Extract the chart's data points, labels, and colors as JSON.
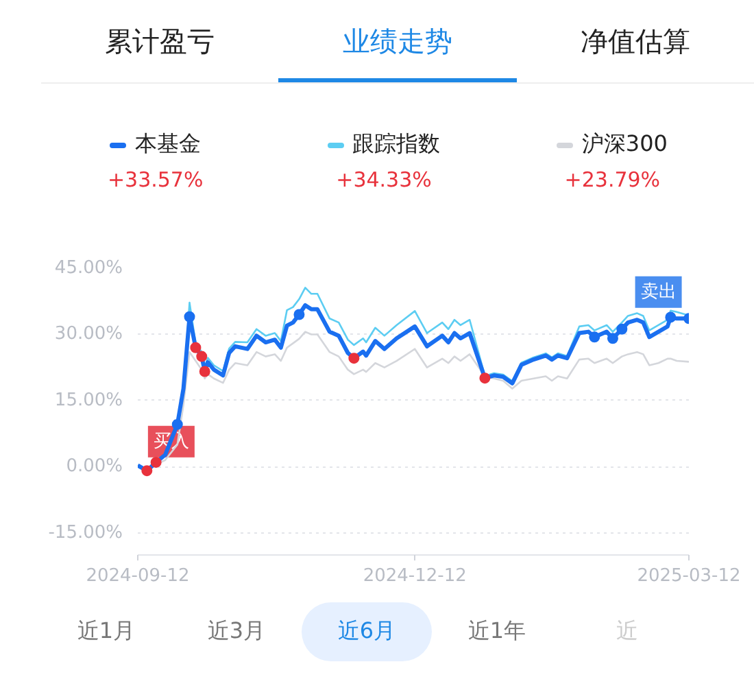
{
  "chart_data": {
    "type": "line",
    "legend": "top",
    "grid": "y",
    "marker": "none",
    "line_style": "solid",
    "x": [
      "2024-09-12",
      "2024-09-15",
      "2024-09-18",
      "2024-09-21",
      "2024-09-25",
      "2024-09-27",
      "2024-09-29",
      "2024-10-01",
      "2024-10-03",
      "2024-10-04",
      "2024-10-05",
      "2024-10-07",
      "2024-10-10",
      "2024-10-12",
      "2024-10-14",
      "2024-10-18",
      "2024-10-21",
      "2024-10-24",
      "2024-10-27",
      "2024-10-29",
      "2024-10-31",
      "2024-11-02",
      "2024-11-04",
      "2024-11-06",
      "2024-11-08",
      "2024-11-10",
      "2024-11-14",
      "2024-11-17",
      "2024-11-20",
      "2024-11-22",
      "2024-11-25",
      "2024-11-26",
      "2024-11-29",
      "2024-12-02",
      "2024-12-06",
      "2024-12-12",
      "2024-12-16",
      "2024-12-21",
      "2024-12-23",
      "2024-12-25",
      "2024-12-27",
      "2024-12-30",
      "2025-01-04",
      "2025-01-07",
      "2025-01-10",
      "2025-01-13",
      "2025-01-16",
      "2025-01-20",
      "2025-01-24",
      "2025-01-26",
      "2025-01-28",
      "2025-01-31",
      "2025-02-04",
      "2025-02-07",
      "2025-02-09",
      "2025-02-13",
      "2025-02-15",
      "2025-02-18",
      "2025-02-20",
      "2025-02-23",
      "2025-02-25",
      "2025-02-27",
      "2025-03-02",
      "2025-03-05",
      "2025-03-06",
      "2025-03-08",
      "2025-03-12"
    ],
    "xlim": [
      "2024-09-12",
      "2025-03-12"
    ],
    "xticks": [
      "2024-09-12",
      "2024-12-12",
      "2025-03-12"
    ],
    "ylim": [
      -20,
      45
    ],
    "yticks": [
      {
        "value": -15,
        "label": "-15.00%"
      },
      {
        "value": 0,
        "label": "0.00%"
      },
      {
        "value": 15,
        "label": "15.00%"
      },
      {
        "value": 30,
        "label": "30.00%"
      },
      {
        "value": 45,
        "label": "45.00%"
      }
    ],
    "series": [
      {
        "name": "沪深300",
        "color": "#d4d6db",
        "values": [
          0.3,
          -0.5,
          0.5,
          1.5,
          5,
          14,
          26,
          24,
          22,
          20,
          21,
          20,
          19,
          22,
          23.5,
          23,
          26,
          25,
          25.5,
          24,
          27,
          28,
          29,
          30.6,
          30,
          30,
          26,
          25,
          22,
          21,
          22,
          21.5,
          23.5,
          22.5,
          24,
          26.7,
          22.5,
          24.5,
          23.5,
          25,
          24,
          25.5,
          20.5,
          20,
          19.5,
          17.7,
          19.5,
          20,
          20.5,
          19.5,
          20.5,
          20,
          24.3,
          24.5,
          23.5,
          24.5,
          23.5,
          25,
          25.5,
          26,
          25.5,
          23,
          23.5,
          24.5,
          24.5,
          24,
          23.8
        ]
      },
      {
        "name": "跟踪指数",
        "color": "#5ccdf2",
        "values": [
          0.3,
          -0.9,
          1.0,
          2.7,
          9.6,
          17.7,
          37.2,
          28.0,
          26.0,
          22.6,
          24.7,
          23.0,
          21.7,
          26.8,
          28.3,
          28.2,
          31.2,
          29.7,
          30.3,
          28.5,
          35.5,
          36.2,
          38.0,
          40.6,
          39.2,
          39.2,
          33.6,
          32.7,
          28.8,
          27.6,
          29.1,
          28.2,
          31.5,
          29.7,
          32.1,
          35.3,
          30.3,
          32.7,
          31.2,
          33.3,
          32.1,
          33.3,
          20.6,
          21.2,
          20.9,
          19.4,
          23.6,
          24.8,
          25.7,
          24.8,
          25.7,
          25.1,
          31.8,
          32.1,
          30.9,
          32.1,
          30.6,
          32.7,
          34.2,
          34.8,
          34.2,
          30.9,
          32.1,
          33.3,
          35.4,
          35.1,
          34.3
        ]
      },
      {
        "name": "本基金",
        "color": "#1a6ff0",
        "values": [
          0.3,
          -0.9,
          1.0,
          2.7,
          9.6,
          17.7,
          34.0,
          27.0,
          25.0,
          21.6,
          23.7,
          22.0,
          20.7,
          25.8,
          27.3,
          26.7,
          29.7,
          28.2,
          28.8,
          27.0,
          32.0,
          32.7,
          34.5,
          36.6,
          35.7,
          35.7,
          30.6,
          29.7,
          25.8,
          24.6,
          26.1,
          25.2,
          28.5,
          26.7,
          29.1,
          31.8,
          27.3,
          29.7,
          28.2,
          30.3,
          29.1,
          30.3,
          20.1,
          20.7,
          20.4,
          18.9,
          23.1,
          24.3,
          25.2,
          24.3,
          25.2,
          24.6,
          30.3,
          30.6,
          29.4,
          30.6,
          29.1,
          31.2,
          32.7,
          33.3,
          32.7,
          29.4,
          30.6,
          31.8,
          33.9,
          33.6,
          33.6
        ]
      },
      {
        "type": "scatter",
        "marker": "circle",
        "color": "#e8323c",
        "x": [
          "2024-09-15",
          "2024-09-18",
          "2024-10-01",
          "2024-10-03",
          "2024-10-04",
          "2024-11-22",
          "2025-01-04"
        ],
        "values": [
          -0.9,
          1.0,
          27.0,
          25.0,
          21.6,
          24.6,
          20.1
        ]
      },
      {
        "type": "scatter",
        "marker": "circle",
        "color": "#1a6ff0",
        "x": [
          "2024-09-25",
          "2024-09-29",
          "2024-11-04",
          "2025-02-09",
          "2025-02-15",
          "2025-02-18",
          "2025-03-06",
          "2025-03-12"
        ],
        "values": [
          9.6,
          34.0,
          34.5,
          29.4,
          29.1,
          31.2,
          33.9,
          33.6
        ]
      }
    ],
    "annotations": [
      "+23.79%",
      "+34.33%",
      "+33.57%",
      "累计盈亏",
      "业绩走势",
      "净值估算",
      "近1月",
      "近3月",
      "近6月",
      "近1年",
      "近",
      {
        "text": "买入",
        "x": "2024-09-23",
        "y": 5.7
      },
      {
        "text": "卖出",
        "x": "2025-03-02",
        "y": 39.6
      }
    ]
  }
}
